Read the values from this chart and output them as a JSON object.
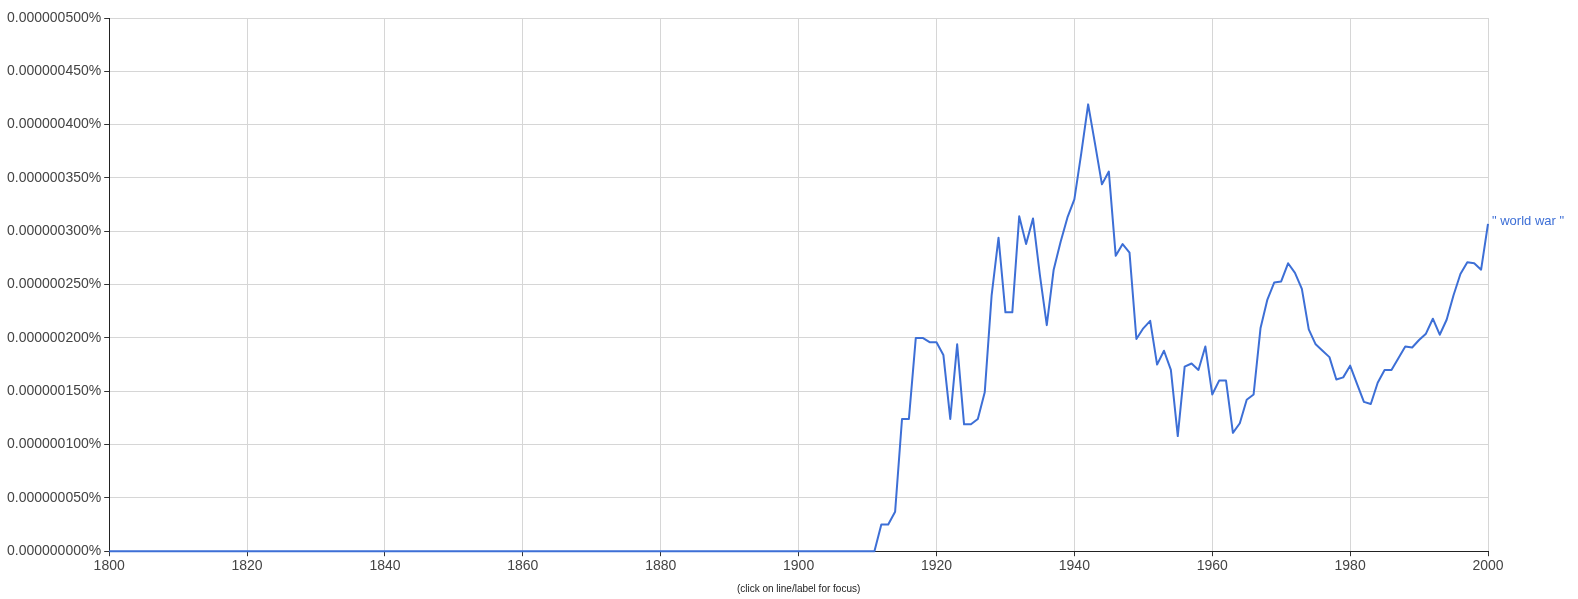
{
  "chart_data": {
    "type": "line",
    "annotations": [
      "(click on line/label for focus)"
    ],
    "xlim": [
      1800,
      2000
    ],
    "xticks": [
      1800,
      1820,
      1840,
      1860,
      1880,
      1900,
      1920,
      1940,
      1960,
      1980,
      2000
    ],
    "ylim": [
      0,
      5e-07
    ],
    "yticks": [
      {
        "value": 0,
        "label": "0.000000000%"
      },
      {
        "value": 5e-08,
        "label": "0.000000050%"
      },
      {
        "value": 1e-07,
        "label": "0.000000100%"
      },
      {
        "value": 1.5e-07,
        "label": "0.000000150%"
      },
      {
        "value": 2e-07,
        "label": "0.000000200%"
      },
      {
        "value": 2.5e-07,
        "label": "0.000000250%"
      },
      {
        "value": 3e-07,
        "label": "0.000000300%"
      },
      {
        "value": 3.5e-07,
        "label": "0.000000350%"
      },
      {
        "value": 4e-07,
        "label": "0.000000400%"
      },
      {
        "value": 4.5e-07,
        "label": "0.000000450%"
      },
      {
        "value": 5e-07,
        "label": "0.000000500%"
      }
    ],
    "grid": true,
    "legend": false,
    "series": [
      {
        "name": "\" world war \"",
        "color": "#3d6fd6",
        "x": [
          1800,
          1911,
          1912,
          1913,
          1914,
          1915,
          1916,
          1917,
          1918,
          1919,
          1920,
          1921,
          1922,
          1923,
          1924,
          1925,
          1926,
          1927,
          1928,
          1929,
          1930,
          1931,
          1932,
          1933,
          1934,
          1935,
          1936,
          1937,
          1938,
          1939,
          1940,
          1941,
          1942,
          1943,
          1944,
          1945,
          1946,
          1947,
          1948,
          1949,
          1950,
          1951,
          1952,
          1953,
          1954,
          1955,
          1956,
          1957,
          1958,
          1959,
          1960,
          1961,
          1962,
          1963,
          1964,
          1965,
          1966,
          1967,
          1968,
          1969,
          1970,
          1971,
          1972,
          1973,
          1974,
          1975,
          1976,
          1977,
          1978,
          1979,
          1980,
          1981,
          1982,
          1983,
          1984,
          1985,
          1986,
          1987,
          1988,
          1989,
          1990,
          1991,
          1992,
          1993,
          1994,
          1995,
          1996,
          1997,
          1998,
          1999,
          2000
        ],
        "values": [
          0,
          0,
          2.5e-08,
          2.5e-08,
          3.7e-08,
          1.24e-07,
          1.24e-07,
          2e-07,
          2e-07,
          1.96e-07,
          1.96e-07,
          1.84e-07,
          1.24e-07,
          1.94e-07,
          1.19e-07,
          1.19e-07,
          1.24e-07,
          1.49e-07,
          2.4e-07,
          2.94e-07,
          2.24e-07,
          2.24e-07,
          3.14e-07,
          2.88e-07,
          3.12e-07,
          2.59e-07,
          2.12e-07,
          2.64e-07,
          2.9e-07,
          3.13e-07,
          3.3e-07,
          3.73e-07,
          4.19e-07,
          3.82e-07,
          3.44e-07,
          3.56e-07,
          2.77e-07,
          2.88e-07,
          2.8e-07,
          1.99e-07,
          2.09e-07,
          2.16e-07,
          1.75e-07,
          1.88e-07,
          1.7e-07,
          1.08e-07,
          1.73e-07,
          1.76e-07,
          1.7e-07,
          1.92e-07,
          1.47e-07,
          1.6e-07,
          1.6e-07,
          1.11e-07,
          1.2e-07,
          1.42e-07,
          1.47e-07,
          2.09e-07,
          2.36e-07,
          2.52e-07,
          2.53e-07,
          2.7e-07,
          2.61e-07,
          2.46e-07,
          2.08e-07,
          1.94e-07,
          1.88e-07,
          1.82e-07,
          1.61e-07,
          1.63e-07,
          1.74e-07,
          1.57e-07,
          1.4e-07,
          1.38e-07,
          1.58e-07,
          1.7e-07,
          1.7e-07,
          1.81e-07,
          1.92e-07,
          1.91e-07,
          1.98e-07,
          2.04e-07,
          2.18e-07,
          2.03e-07,
          2.17e-07,
          2.4e-07,
          2.6e-07,
          2.71e-07,
          2.7e-07,
          2.64e-07,
          3.07e-07
        ]
      }
    ]
  }
}
